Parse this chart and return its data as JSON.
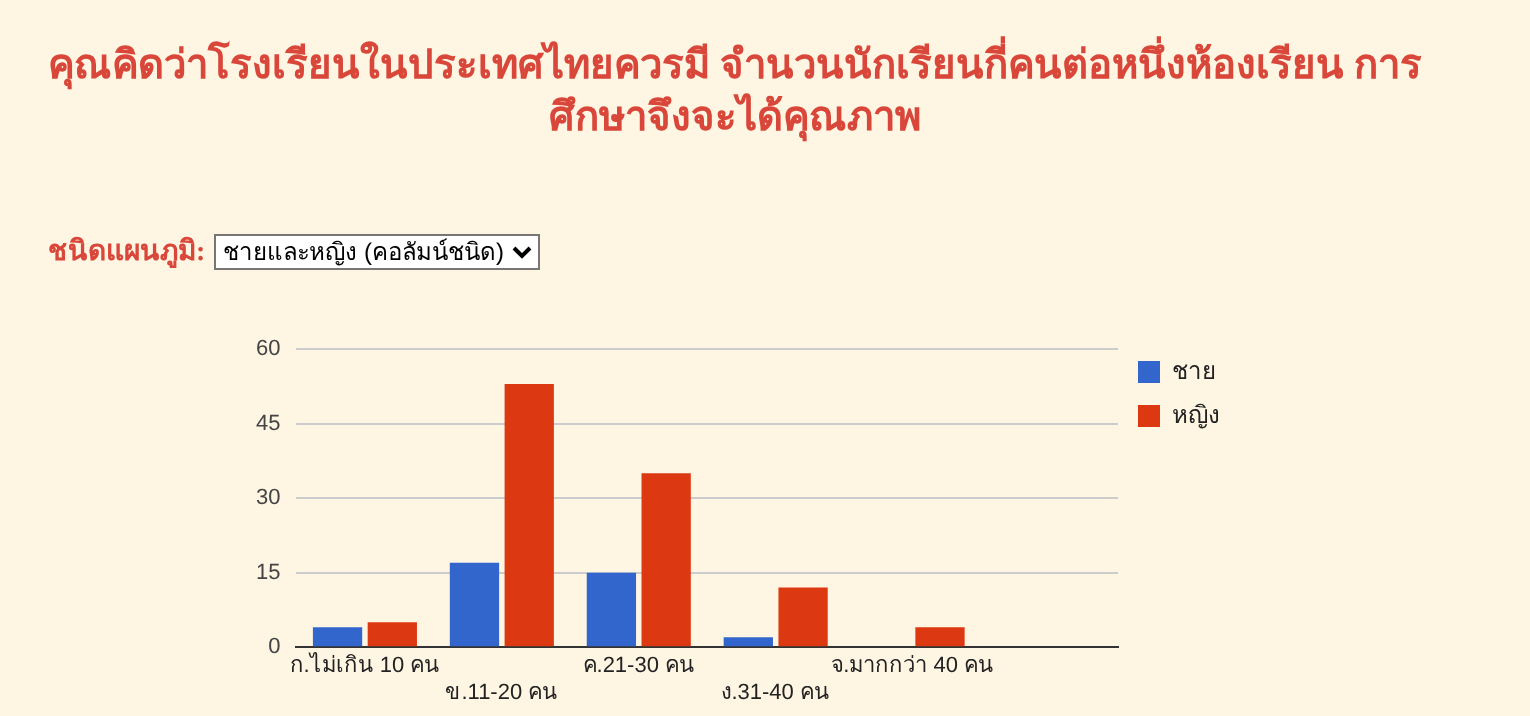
{
  "chart_data": {
    "type": "bar",
    "title": "คุณคิดว่าโรงเรียนในประเทศไทยควรมี จำนวนนักเรียนกี่คนต่อหนึ่งห้องเรียน การศึกษาจึงจะได้คุณภาพ",
    "annotations": [
      "ชนิดแผนภูมิ:",
      "ชายและหญิง (คอลัมน์ชนิด)"
    ],
    "categories": [
      "ก.ไม่เกิน 10 คน",
      "ข.11-20 คน",
      "ค.21-30 คน",
      "ง.31-40 คน",
      "จ.มากกว่า 40 คน",
      null
    ],
    "series": [
      {
        "name": "ชาย",
        "color": "#3366cc",
        "values": [
          4,
          17,
          15,
          2,
          0,
          null
        ]
      },
      {
        "name": "หญิง",
        "color": "#dc3912",
        "values": [
          5,
          53,
          35,
          12,
          4,
          null
        ]
      }
    ],
    "ylim": [
      0,
      60
    ],
    "yticks": [
      0,
      15,
      30,
      45,
      60
    ],
    "grid": "y",
    "legend": "right"
  }
}
